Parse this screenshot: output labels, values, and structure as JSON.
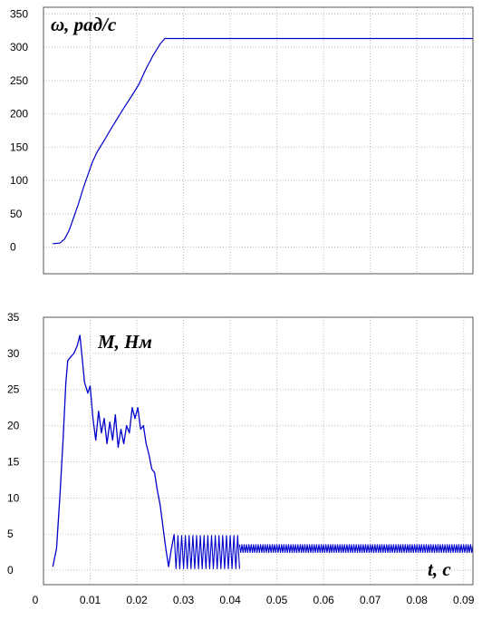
{
  "chart_data": [
    {
      "type": "line",
      "title": "",
      "annotation": "ω, рад/с",
      "xlabel": "",
      "ylabel": "",
      "xlim": [
        0,
        0.092
      ],
      "ylim": [
        -40,
        360
      ],
      "yticks": [
        "0",
        "50",
        "100",
        "150",
        "200",
        "250",
        "300",
        "350"
      ],
      "yticks_values": [
        0,
        50,
        100,
        150,
        200,
        250,
        300,
        350
      ],
      "grid": true,
      "color": "#0000cc",
      "series": [
        {
          "x": [
            0.002,
            0.0035,
            0.0045,
            0.0055,
            0.0065,
            0.0075,
            0.0085,
            0.0095,
            0.0105,
            0.0115,
            0.013,
            0.0145,
            0.016,
            0.0175,
            0.019,
            0.0205,
            0.022,
            0.0235,
            0.025,
            0.026,
            0.027,
            0.092
          ],
          "y": [
            5,
            6,
            12,
            25,
            45,
            65,
            88,
            108,
            128,
            143,
            160,
            178,
            195,
            212,
            228,
            245,
            268,
            288,
            305,
            313,
            313,
            313
          ]
        }
      ]
    },
    {
      "type": "line",
      "title": "",
      "annotation": "M, Нм",
      "xlabel": "t, c",
      "ylabel": "",
      "xlim": [
        0,
        0.092
      ],
      "ylim": [
        -2,
        35
      ],
      "yticks": [
        "0",
        "5",
        "10",
        "15",
        "20",
        "25",
        "30",
        "35"
      ],
      "yticks_values": [
        0,
        5,
        10,
        15,
        20,
        25,
        30,
        35
      ],
      "xticks": [
        "0",
        "0.01",
        "0.02",
        "0.03",
        "0.04",
        "0.05",
        "0.06",
        "0.07",
        "0.08",
        "0.09"
      ],
      "xticks_values": [
        0,
        0.01,
        0.02,
        0.03,
        0.04,
        0.05,
        0.06,
        0.07,
        0.08,
        0.09
      ],
      "grid": true,
      "color": "#0000cc",
      "series": [
        {
          "x": [
            0.002,
            0.0028,
            0.0035,
            0.0042,
            0.0048,
            0.0052,
            0.0058,
            0.0065,
            0.0072,
            0.0078,
            0.0082,
            0.0088,
            0.0095,
            0.01,
            0.0106,
            0.0112,
            0.0118,
            0.0124,
            0.013,
            0.0136,
            0.0142,
            0.0148,
            0.0154,
            0.016,
            0.0166,
            0.0172,
            0.0178,
            0.0184,
            0.019,
            0.0196,
            0.0202,
            0.0208,
            0.0214,
            0.022,
            0.0226,
            0.0232,
            0.0238,
            0.0244,
            0.025,
            0.0256,
            0.0262,
            0.0268,
            0.0274,
            0.028
          ],
          "y": [
            0.5,
            3,
            10,
            18,
            26,
            29,
            29.5,
            30,
            31,
            32.5,
            30,
            26,
            24.5,
            25.5,
            21,
            18,
            22,
            19,
            21,
            17.5,
            20.5,
            18,
            21.5,
            17,
            19.5,
            17.5,
            20,
            19,
            22.5,
            21,
            22.5,
            19.5,
            20,
            17.5,
            16,
            14,
            13.5,
            11,
            9,
            6,
            3,
            0.5,
            3,
            5
          ]
        },
        {
          "x_start": 0.028,
          "x_end": 0.042,
          "center": 2.5,
          "amplitude": 2.3,
          "period": 0.0008
        },
        {
          "x_start": 0.042,
          "x_end": 0.092,
          "center": 3.0,
          "amplitude": 0.55,
          "period": 0.0005
        }
      ]
    }
  ]
}
